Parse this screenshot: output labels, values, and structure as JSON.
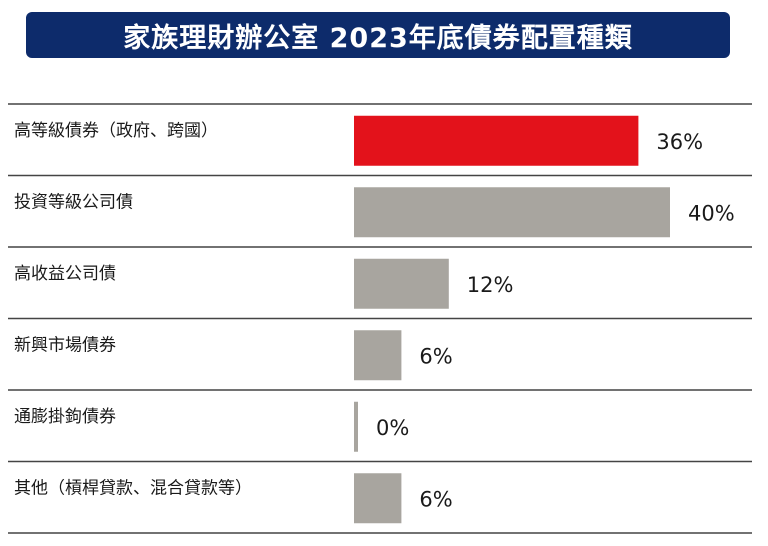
{
  "title": "家族理財辦公室 2023年底債券配置種類",
  "colors": {
    "highlight": "#e3121b",
    "bar": "#a8a59f",
    "divider": "#444444",
    "title_bg": "#0d2b6b"
  },
  "chart_data": {
    "type": "bar",
    "orientation": "horizontal",
    "categories": [
      "高等級債券（政府、跨國）",
      "投資等級公司債",
      "高收益公司債",
      "新興市場債券",
      "通膨掛鉤債券",
      "其他（槓桿貸款、混合貸款等）"
    ],
    "values": [
      36,
      40,
      12,
      6,
      0,
      6
    ],
    "value_labels": [
      "36%",
      "40%",
      "12%",
      "6%",
      "0%",
      "6%"
    ],
    "highlight_index": 0,
    "unit": "%",
    "grid": false,
    "legend": "none"
  }
}
